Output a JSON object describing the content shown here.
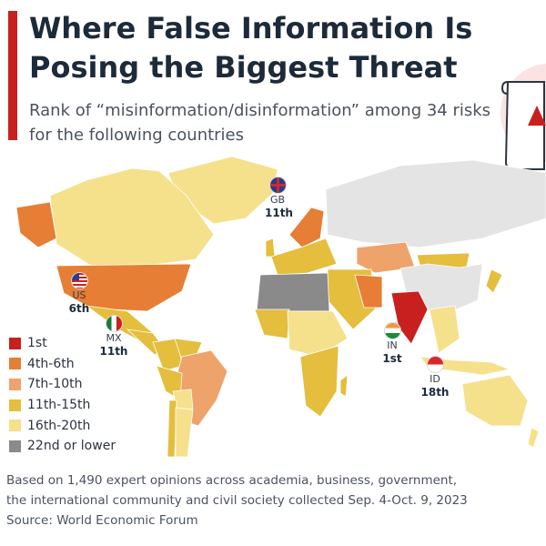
{
  "header": {
    "title": "Where False Information Is Posing the Biggest Threat",
    "subtitle": "Rank of “misinformation/disinformation” among 34 risks for the following countries"
  },
  "colors": {
    "rank_1": "#c8201f",
    "rank_4_6": "#e67e35",
    "rank_7_10": "#eea36a",
    "rank_11_15": "#e4be3c",
    "rank_16_20": "#f5e08c",
    "rank_22_lower": "#8a8a8a",
    "no_data": "#e4e4e4",
    "title_accent": "#c8201f"
  },
  "legend": [
    {
      "label": "1st",
      "color": "#c8201f"
    },
    {
      "label": "4th-6th",
      "color": "#e67e35"
    },
    {
      "label": "7th-10th",
      "color": "#eea36a"
    },
    {
      "label": "11th-15th",
      "color": "#e4be3c"
    },
    {
      "label": "16th-20th",
      "color": "#f5e08c"
    },
    {
      "label": "22nd or lower",
      "color": "#8a8a8a"
    }
  ],
  "callouts": {
    "gb": {
      "code": "GB",
      "rank": "11th"
    },
    "us": {
      "code": "US",
      "rank": "6th"
    },
    "mx": {
      "code": "MX",
      "rank": "11th"
    },
    "in": {
      "code": "IN",
      "rank": "1st"
    },
    "id": {
      "code": "ID",
      "rank": "18th"
    }
  },
  "footer": {
    "note_line1": "Based on 1,490 expert opinions across academia, business, government,",
    "note_line2": "the international community and civil society collected Sep. 4-Oct. 9, 2023",
    "source": "Source: World Economic Forum"
  }
}
